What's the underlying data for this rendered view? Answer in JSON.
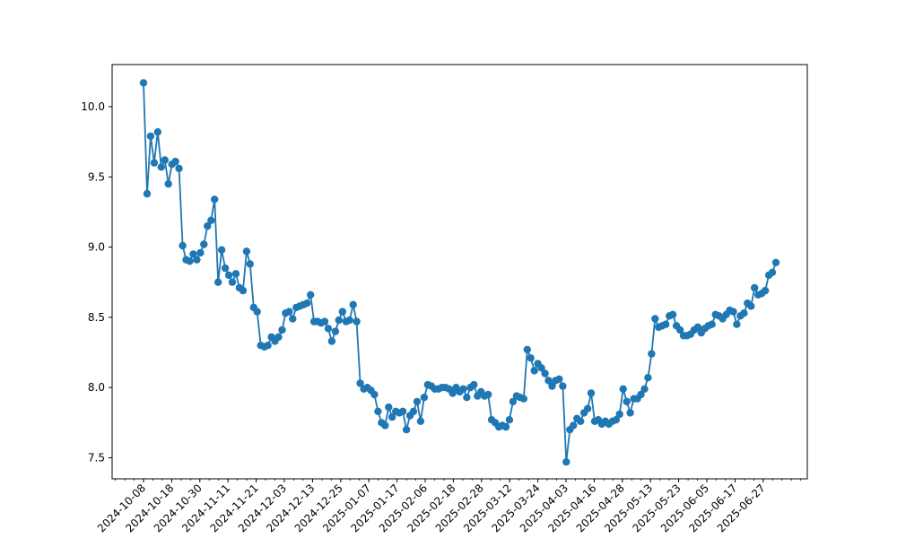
{
  "chart_data": {
    "type": "line",
    "marker": "circle",
    "color": "#1f77b4",
    "title": "",
    "xlabel": "",
    "ylabel": "",
    "ylim": [
      7.35,
      10.3
    ],
    "grid": false,
    "legend": "none",
    "y_ticks": [
      "7.5",
      "8.0",
      "8.5",
      "9.0",
      "9.5",
      "10.0"
    ],
    "x_ticks": [
      "2024-10-08",
      "2024-10-18",
      "2024-10-30",
      "2024-11-11",
      "2024-11-21",
      "2024-12-03",
      "2024-12-13",
      "2024-12-25",
      "2025-01-07",
      "2025-01-17",
      "2025-02-06",
      "2025-02-18",
      "2025-02-28",
      "2025-03-12",
      "2025-03-24",
      "2025-04-03",
      "2025-04-16",
      "2025-04-28",
      "2025-05-13",
      "2025-05-23",
      "2025-06-05",
      "2025-06-17",
      "2025-06-27"
    ],
    "values": [
      10.17,
      9.38,
      9.79,
      9.6,
      9.82,
      9.57,
      9.62,
      9.45,
      9.59,
      9.61,
      9.56,
      9.01,
      8.91,
      8.9,
      8.95,
      8.91,
      8.96,
      9.02,
      9.15,
      9.19,
      9.34,
      8.75,
      8.98,
      8.85,
      8.8,
      8.75,
      8.81,
      8.71,
      8.69,
      8.97,
      8.88,
      8.57,
      8.54,
      8.3,
      8.29,
      8.3,
      8.36,
      8.33,
      8.36,
      8.41,
      8.53,
      8.54,
      8.49,
      8.57,
      8.58,
      8.59,
      8.6,
      8.66,
      8.47,
      8.47,
      8.46,
      8.47,
      8.42,
      8.33,
      8.4,
      8.48,
      8.54,
      8.47,
      8.48,
      8.59,
      8.47,
      8.03,
      7.99,
      8.0,
      7.98,
      7.95,
      7.83,
      7.75,
      7.73,
      7.86,
      7.79,
      7.83,
      7.82,
      7.83,
      7.7,
      7.8,
      7.83,
      7.9,
      7.76,
      7.93,
      8.02,
      8.01,
      7.99,
      7.99,
      8.0,
      8.0,
      7.99,
      7.96,
      8.0,
      7.97,
      7.99,
      7.93,
      8.0,
      8.02,
      7.94,
      7.97,
      7.94,
      7.95,
      7.77,
      7.75,
      7.72,
      7.73,
      7.72,
      7.77,
      7.9,
      7.94,
      7.93,
      7.92,
      8.27,
      8.21,
      8.12,
      8.17,
      8.14,
      8.1,
      8.05,
      8.01,
      8.05,
      8.06,
      8.01,
      7.47,
      7.7,
      7.73,
      7.78,
      7.76,
      7.82,
      7.85,
      7.96,
      7.76,
      7.77,
      7.74,
      7.76,
      7.74,
      7.76,
      7.77,
      7.81,
      7.99,
      7.9,
      7.82,
      7.92,
      7.92,
      7.95,
      7.99,
      8.07,
      8.24,
      8.49,
      8.43,
      8.44,
      8.45,
      8.51,
      8.52,
      8.44,
      8.41,
      8.37,
      8.37,
      8.38,
      8.41,
      8.43,
      8.39,
      8.42,
      8.44,
      8.45,
      8.52,
      8.51,
      8.49,
      8.52,
      8.55,
      8.54,
      8.45,
      8.51,
      8.53,
      8.6,
      8.58,
      8.71,
      8.66,
      8.67,
      8.69,
      8.8,
      8.82,
      8.89
    ]
  }
}
